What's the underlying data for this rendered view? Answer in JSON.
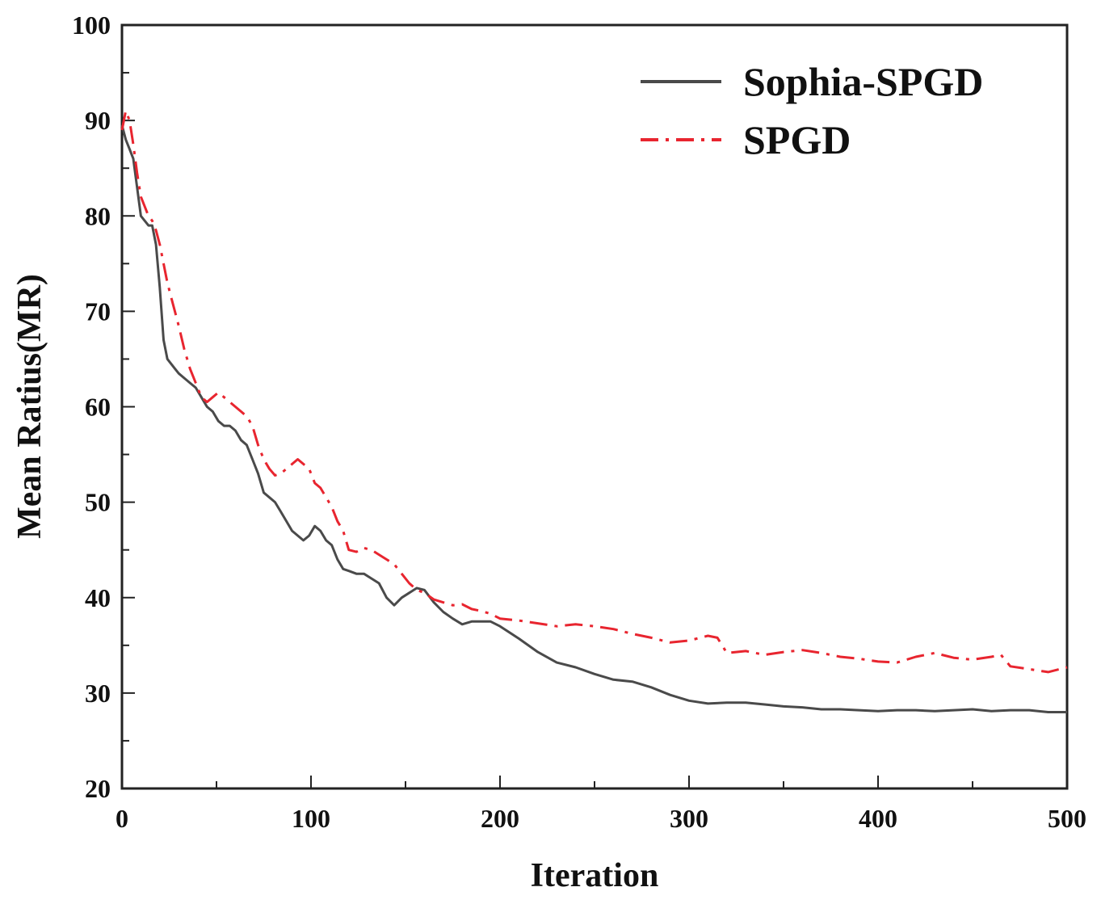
{
  "chart_data": {
    "type": "line",
    "xlabel": "Iteration",
    "ylabel": "Mean Ratius(MR)",
    "xlim": [
      0,
      500
    ],
    "ylim": [
      20,
      100
    ],
    "xticks": [
      "0",
      "100",
      "200",
      "300",
      "400",
      "500"
    ],
    "yticks": [
      "20",
      "30",
      "40",
      "50",
      "60",
      "70",
      "80",
      "90",
      "100"
    ],
    "grid": false,
    "legend_position": "top-right",
    "series": [
      {
        "name": "Sophia-SPGD",
        "color": "#4a4a4a",
        "style": "solid",
        "x": [
          0,
          2,
          4,
          6,
          8,
          10,
          12,
          14,
          16,
          18,
          20,
          22,
          24,
          26,
          28,
          30,
          33,
          36,
          39,
          42,
          45,
          48,
          51,
          54,
          57,
          60,
          63,
          66,
          69,
          72,
          75,
          78,
          81,
          84,
          87,
          90,
          93,
          96,
          99,
          102,
          105,
          108,
          111,
          114,
          117,
          120,
          124,
          128,
          132,
          136,
          140,
          144,
          148,
          152,
          156,
          160,
          165,
          170,
          175,
          180,
          185,
          190,
          195,
          200,
          210,
          220,
          230,
          240,
          250,
          260,
          270,
          280,
          290,
          300,
          310,
          320,
          330,
          340,
          350,
          360,
          370,
          380,
          390,
          400,
          410,
          420,
          430,
          440,
          450,
          460,
          470,
          480,
          490,
          500
        ],
        "values": [
          89.5,
          88.0,
          87.0,
          86.0,
          83.0,
          80.0,
          79.5,
          79.0,
          79.0,
          77.0,
          72.5,
          67.0,
          65.0,
          64.5,
          64.0,
          63.5,
          63.0,
          62.5,
          62.0,
          61.0,
          60.0,
          59.5,
          58.5,
          58.0,
          58.0,
          57.5,
          56.5,
          56.0,
          54.5,
          53.0,
          51.0,
          50.5,
          50.0,
          49.0,
          48.0,
          47.0,
          46.5,
          46.0,
          46.5,
          47.5,
          47.0,
          46.0,
          45.5,
          44.0,
          43.0,
          42.8,
          42.5,
          42.5,
          42.0,
          41.5,
          40.0,
          39.2,
          40.0,
          40.5,
          41.0,
          40.8,
          39.5,
          38.5,
          37.8,
          37.2,
          37.5,
          37.5,
          37.5,
          37.0,
          35.7,
          34.3,
          33.2,
          32.7,
          32.0,
          31.4,
          31.2,
          30.6,
          29.8,
          29.2,
          28.9,
          29.0,
          29.0,
          28.8,
          28.6,
          28.5,
          28.3,
          28.3,
          28.2,
          28.1,
          28.2,
          28.2,
          28.1,
          28.2,
          28.3,
          28.1,
          28.2,
          28.2,
          28.0,
          28.0
        ]
      },
      {
        "name": "SPGD",
        "color": "#e8252f",
        "style": "dashdot",
        "x": [
          0,
          2,
          4,
          6,
          8,
          10,
          12,
          14,
          16,
          18,
          20,
          22,
          24,
          26,
          28,
          30,
          33,
          36,
          39,
          42,
          45,
          48,
          51,
          54,
          57,
          60,
          63,
          66,
          69,
          72,
          75,
          78,
          81,
          84,
          87,
          90,
          93,
          96,
          99,
          102,
          105,
          108,
          111,
          114,
          117,
          120,
          124,
          128,
          132,
          136,
          140,
          144,
          148,
          152,
          156,
          160,
          165,
          170,
          175,
          180,
          185,
          190,
          195,
          200,
          210,
          220,
          230,
          240,
          250,
          260,
          270,
          280,
          290,
          300,
          310,
          315,
          320,
          330,
          340,
          350,
          360,
          370,
          380,
          390,
          400,
          410,
          420,
          430,
          440,
          450,
          460,
          465,
          470,
          480,
          490,
          500
        ],
        "values": [
          89.0,
          91.0,
          90.0,
          87.5,
          84.5,
          82.0,
          81.0,
          80.0,
          79.5,
          78.5,
          77.0,
          75.0,
          73.0,
          71.5,
          70.0,
          68.5,
          66.0,
          64.0,
          62.5,
          61.0,
          60.5,
          61.0,
          61.5,
          61.0,
          60.5,
          60.0,
          59.5,
          59.0,
          58.0,
          56.0,
          54.5,
          53.5,
          52.8,
          53.0,
          53.5,
          54.0,
          54.5,
          54.0,
          53.5,
          52.0,
          51.5,
          50.5,
          49.5,
          48.0,
          47.0,
          45.0,
          44.8,
          45.2,
          45.0,
          44.5,
          44.0,
          43.5,
          42.5,
          41.5,
          40.8,
          40.5,
          39.8,
          39.5,
          39.2,
          39.3,
          38.8,
          38.6,
          38.3,
          37.8,
          37.6,
          37.3,
          37.0,
          37.2,
          37.0,
          36.7,
          36.2,
          35.8,
          35.3,
          35.5,
          36.0,
          35.8,
          34.2,
          34.4,
          34.0,
          34.3,
          34.5,
          34.2,
          33.8,
          33.6,
          33.3,
          33.2,
          33.8,
          34.2,
          33.7,
          33.5,
          33.8,
          34.0,
          32.8,
          32.5,
          32.2,
          32.7
        ]
      }
    ]
  }
}
